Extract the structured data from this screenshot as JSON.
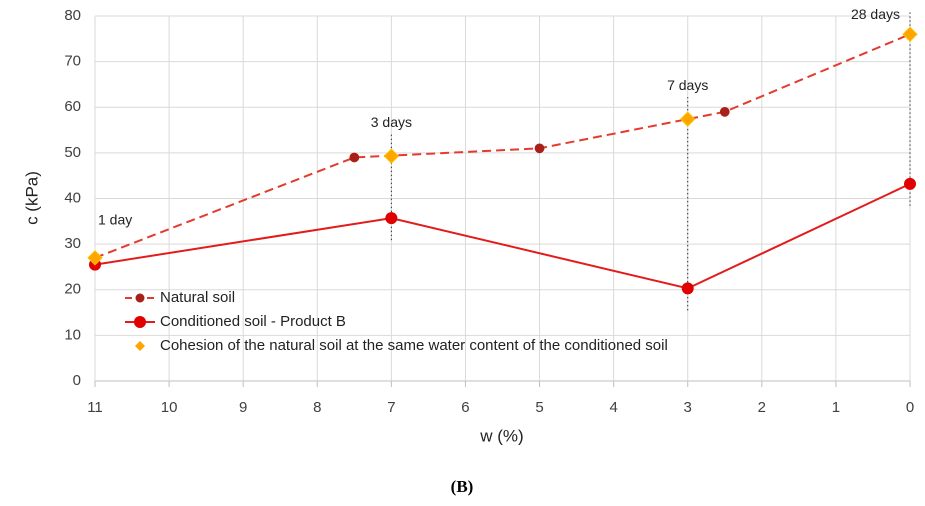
{
  "chart_data": {
    "type": "line",
    "xlabel": "w (%)",
    "ylabel": "c (kPa)",
    "caption": "(B)",
    "xlim": [
      11,
      0
    ],
    "xticks": [
      11,
      10,
      9,
      8,
      7,
      6,
      5,
      4,
      3,
      2,
      1,
      0
    ],
    "ylim": [
      0,
      80
    ],
    "yticks": [
      0,
      10,
      20,
      30,
      40,
      50,
      60,
      70,
      80
    ],
    "grid": true,
    "legend": "lower left",
    "series": [
      {
        "name": "Natural soil",
        "color": "#a8201a",
        "line_color": "#e33b2e",
        "style": "dashed",
        "marker": "circle",
        "x": [
          11,
          7.5,
          5,
          2.5,
          0
        ],
        "values": [
          27,
          49,
          51,
          59,
          76
        ]
      },
      {
        "name": "Conditioned soil - Product B",
        "color": "#e00000",
        "line_color": "#e31b1b",
        "style": "solid",
        "marker": "circle",
        "x": [
          11,
          7,
          3,
          0
        ],
        "values": [
          25.5,
          35.7,
          20.3,
          43.2
        ]
      },
      {
        "name": "Cohesion of the natural soil at the same water content of the conditioned soil",
        "color": "#ffa500",
        "style": "none",
        "marker": "diamond",
        "x": [
          11,
          7,
          3,
          0
        ],
        "values": [
          27,
          49.3,
          57.4,
          76
        ]
      }
    ],
    "annotations": [
      "1 day",
      "3 days",
      "7 days",
      "28 days"
    ]
  }
}
